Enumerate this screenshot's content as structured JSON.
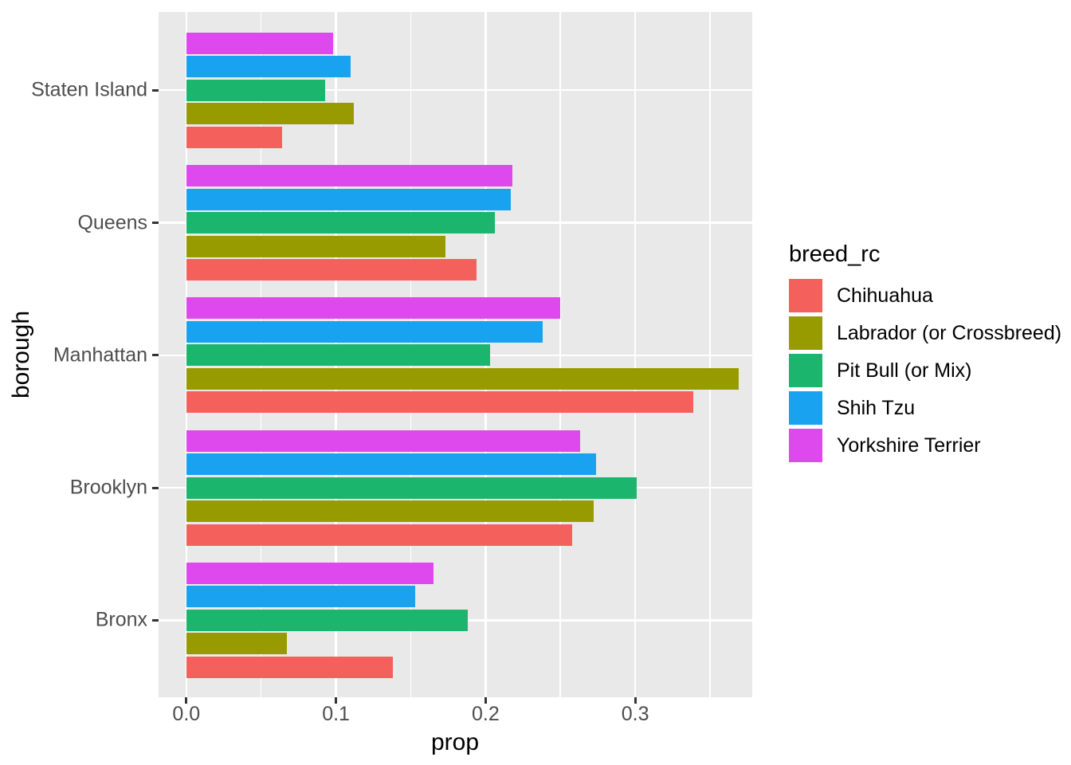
{
  "chart_data": {
    "type": "bar",
    "orientation": "horizontal",
    "xlabel": "prop",
    "ylabel": "borough",
    "legend_title": "breed_rc",
    "legend_position": "right",
    "grid": true,
    "categories": [
      "Staten Island",
      "Queens",
      "Manhattan",
      "Brooklyn",
      "Bronx"
    ],
    "series": [
      {
        "name": "Chihuahua",
        "color": "#F4615D",
        "values": [
          0.064,
          0.194,
          0.339,
          0.258,
          0.138
        ]
      },
      {
        "name": "Labrador (or Crossbreed)",
        "color": "#989B00",
        "values": [
          0.112,
          0.173,
          0.369,
          0.272,
          0.067
        ]
      },
      {
        "name": "Pit Bull (or Mix)",
        "color": "#1CB56D",
        "values": [
          0.093,
          0.206,
          0.203,
          0.301,
          0.188
        ]
      },
      {
        "name": "Shih Tzu",
        "color": "#18A2F0",
        "values": [
          0.11,
          0.217,
          0.238,
          0.274,
          0.153
        ]
      },
      {
        "name": "Yorkshire Terrier",
        "color": "#DE49EE",
        "values": [
          0.098,
          0.218,
          0.25,
          0.263,
          0.165
        ]
      }
    ],
    "bar_display_order_within_group": "reverse_of_legend",
    "x_ticks": [
      0.0,
      0.1,
      0.2,
      0.3
    ],
    "x_tick_labels": [
      "0.0",
      "0.1",
      "0.2",
      "0.3"
    ],
    "x_minor_ticks": [
      0.05,
      0.15,
      0.25,
      0.35
    ],
    "xlim": [
      -0.0185,
      0.378
    ],
    "colors": {
      "panel_background": "#E9E9E9",
      "gridline": "#FFFFFF",
      "tick_mark": "#333333",
      "tick_label": "#4D4D4D",
      "axis_title": "#000000"
    }
  }
}
